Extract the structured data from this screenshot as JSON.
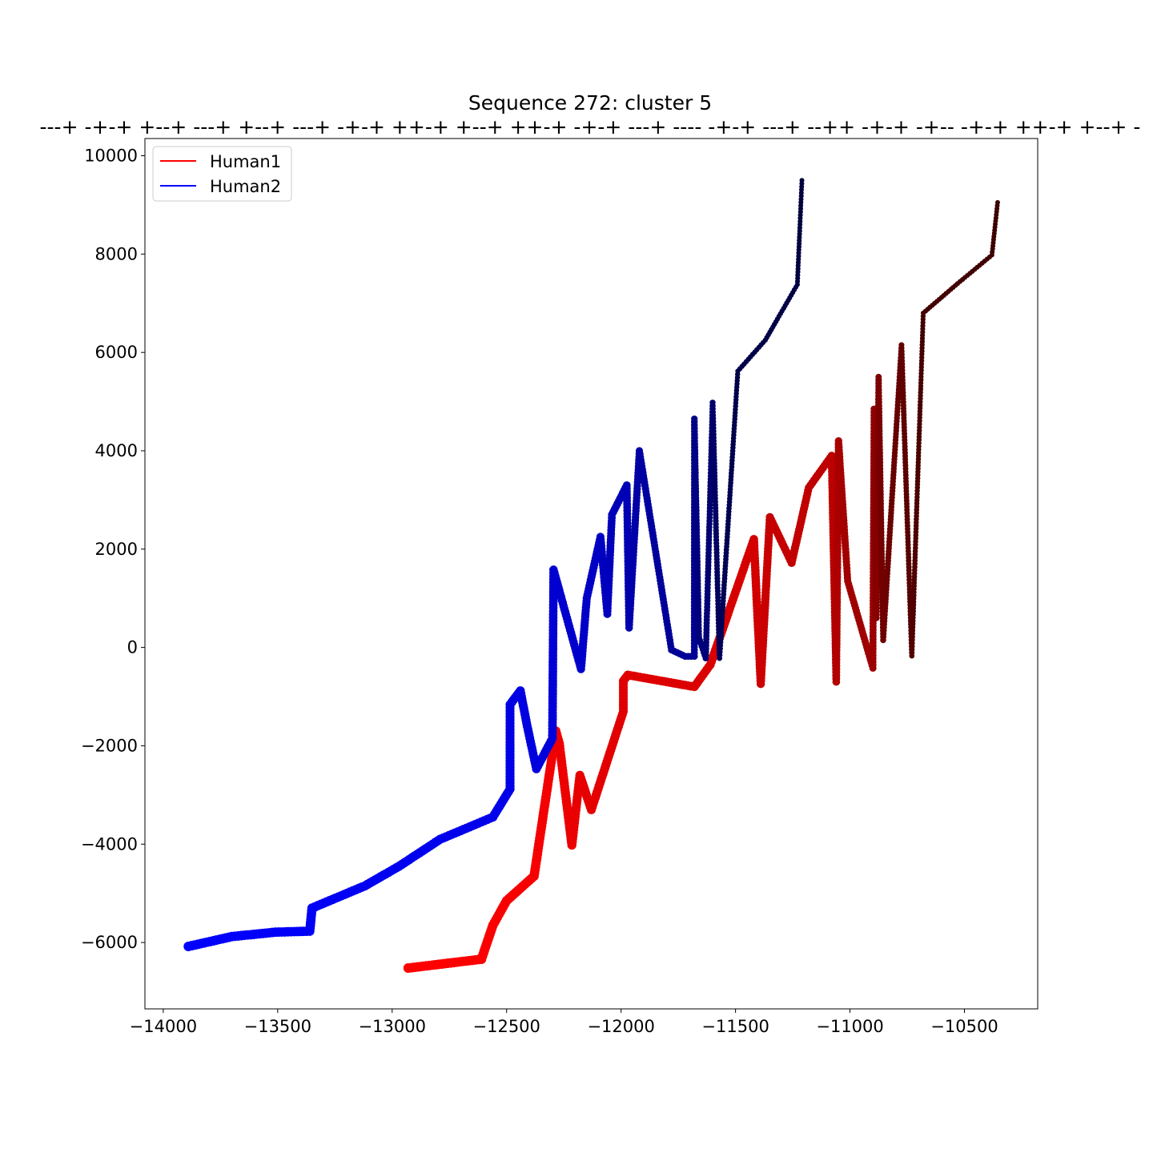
{
  "chart_data": {
    "type": "line",
    "title": "Sequence 272: cluster 5",
    "subtitle": "---+ -+-+ +--+ ---+ +--+ ---+ -+-+ ++-+ +--+ ++-+ -+-+ ---+ ---- -+-+ ---+ --++ -+-+ -+-- -+-+ ++-+ +--+ -",
    "xlabel": "",
    "ylabel": "",
    "xlim": [
      -14080,
      -10180
    ],
    "ylim": [
      -7350,
      10350
    ],
    "x_ticks": [
      -14000,
      -13500,
      -13000,
      -12500,
      -12000,
      -11500,
      -11000,
      -10500
    ],
    "x_tick_labels": [
      "−14000",
      "−13500",
      "−13000",
      "−12500",
      "−12000",
      "−11500",
      "−11000",
      "−10500"
    ],
    "y_ticks": [
      -6000,
      -4000,
      -2000,
      0,
      2000,
      4000,
      6000,
      8000,
      10000
    ],
    "y_tick_labels": [
      "−6000",
      "−4000",
      "−2000",
      "0",
      "2000",
      "4000",
      "6000",
      "8000",
      "10000"
    ],
    "grid": false,
    "legend_position": "top-left",
    "series": [
      {
        "name": "Human1",
        "legend_color": "#ff0000",
        "color_start": "#ff0000",
        "color_end": "#3c0000",
        "points": [
          [
            -12930,
            -6520
          ],
          [
            -12610,
            -6340
          ],
          [
            -12560,
            -5650
          ],
          [
            -12500,
            -5150
          ],
          [
            -12380,
            -4650
          ],
          [
            -12285,
            -1700
          ],
          [
            -12270,
            -1950
          ],
          [
            -12215,
            -4020
          ],
          [
            -12180,
            -2600
          ],
          [
            -12130,
            -3300
          ],
          [
            -11990,
            -1300
          ],
          [
            -11990,
            -680
          ],
          [
            -11970,
            -560
          ],
          [
            -11680,
            -800
          ],
          [
            -11610,
            -350
          ],
          [
            -11420,
            2200
          ],
          [
            -11390,
            -740
          ],
          [
            -11350,
            2650
          ],
          [
            -11255,
            1720
          ],
          [
            -11180,
            3250
          ],
          [
            -11080,
            3900
          ],
          [
            -11060,
            -700
          ],
          [
            -11050,
            4200
          ],
          [
            -11010,
            1350
          ],
          [
            -10900,
            -420
          ],
          [
            -10895,
            4850
          ],
          [
            -10885,
            600
          ],
          [
            -10875,
            5500
          ],
          [
            -10855,
            150
          ],
          [
            -10775,
            6150
          ],
          [
            -10730,
            -170
          ],
          [
            -10680,
            6800
          ],
          [
            -10530,
            7400
          ],
          [
            -10380,
            7980
          ],
          [
            -10355,
            9050
          ]
        ]
      },
      {
        "name": "Human2",
        "legend_color": "#0000ff",
        "color_start": "#0000ff",
        "color_end": "#00003c",
        "points": [
          [
            -13890,
            -6080
          ],
          [
            -13700,
            -5880
          ],
          [
            -13510,
            -5790
          ],
          [
            -13360,
            -5770
          ],
          [
            -13350,
            -5300
          ],
          [
            -13120,
            -4850
          ],
          [
            -12970,
            -4450
          ],
          [
            -12790,
            -3900
          ],
          [
            -12560,
            -3450
          ],
          [
            -12485,
            -2880
          ],
          [
            -12485,
            -1160
          ],
          [
            -12440,
            -880
          ],
          [
            -12410,
            -1600
          ],
          [
            -12370,
            -2470
          ],
          [
            -12300,
            -1850
          ],
          [
            -12295,
            1580
          ],
          [
            -12175,
            -440
          ],
          [
            -12150,
            1000
          ],
          [
            -12090,
            2250
          ],
          [
            -12060,
            680
          ],
          [
            -12040,
            2700
          ],
          [
            -11975,
            3300
          ],
          [
            -11965,
            400
          ],
          [
            -11920,
            4000
          ],
          [
            -11780,
            -50
          ],
          [
            -11720,
            -180
          ],
          [
            -11680,
            -180
          ],
          [
            -11680,
            4650
          ],
          [
            -11660,
            200
          ],
          [
            -11630,
            -220
          ],
          [
            -11600,
            4980
          ],
          [
            -11570,
            -220
          ],
          [
            -11490,
            5620
          ],
          [
            -11370,
            6250
          ],
          [
            -11230,
            7380
          ],
          [
            -11210,
            9500
          ]
        ]
      }
    ]
  }
}
